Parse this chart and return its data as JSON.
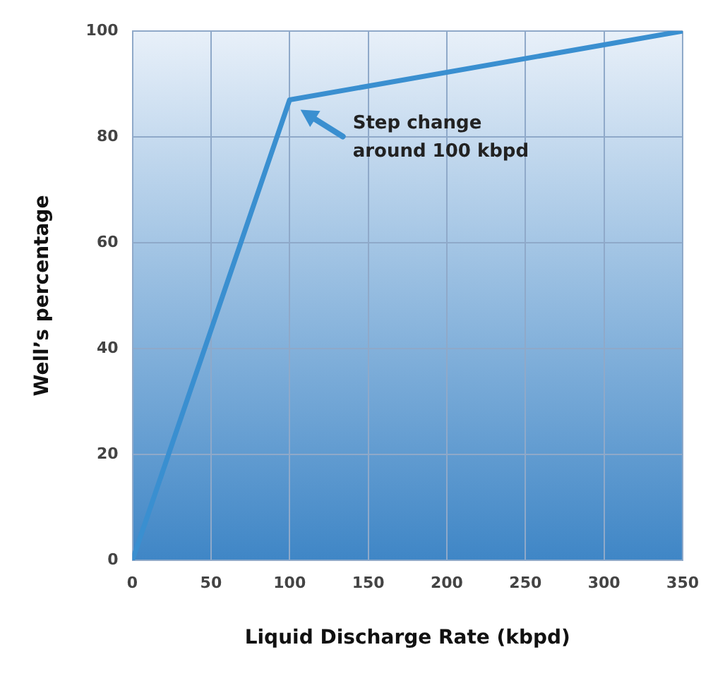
{
  "chart_data": {
    "type": "line",
    "xlabel": "Liquid Discharge Rate (kbpd)",
    "ylabel": "Well’s percentage",
    "series": [
      {
        "x": [
          0,
          100,
          350
        ],
        "values": [
          0,
          87,
          100
        ],
        "color": "#3a8fd0"
      }
    ],
    "xlim": [
      0,
      350
    ],
    "xticks": [
      0,
      50,
      100,
      150,
      200,
      250,
      300,
      350
    ],
    "ylim": [
      0,
      100
    ],
    "yticks": [
      0,
      20,
      40,
      60,
      80,
      100
    ],
    "grid": true,
    "legend": false,
    "marker": "none",
    "line_style": "solid",
    "annotations": [
      "Step change\naround 100 kbpd"
    ]
  }
}
